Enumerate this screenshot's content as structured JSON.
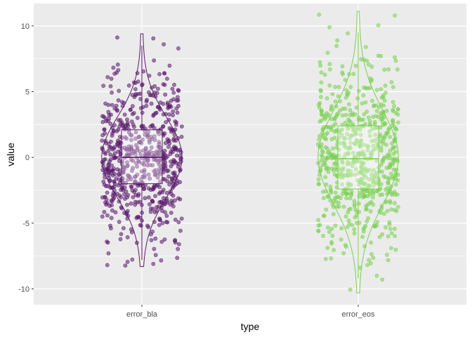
{
  "chart_data": {
    "type": "scatter",
    "subtype": "jitter-violin-boxplot",
    "xlabel": "type",
    "ylabel": "value",
    "categories": [
      "error_bla",
      "error_eos"
    ],
    "ylim": [
      -11.2,
      11.7
    ],
    "yticks": [
      -10,
      -5,
      0,
      5,
      10
    ],
    "grid": true,
    "legend": "none",
    "colors": {
      "panel": "#ebebeb",
      "grid": "#ffffff",
      "error_bla": "#5a1a6b",
      "error_eos": "#7ad151"
    },
    "series": [
      {
        "category": "error_bla",
        "n_points": 700,
        "min": -8.3,
        "max": 9.4,
        "boxplot": {
          "lower_whisker": -7.8,
          "q1": -2.0,
          "median": 0.0,
          "q3": 2.1,
          "upper_whisker": 8.5
        }
      },
      {
        "category": "error_eos",
        "n_points": 700,
        "min": -10.3,
        "max": 11.1,
        "boxplot": {
          "lower_whisker": -9.2,
          "q1": -2.4,
          "median": -0.1,
          "q3": 2.4,
          "upper_whisker": 9.5
        }
      }
    ]
  }
}
